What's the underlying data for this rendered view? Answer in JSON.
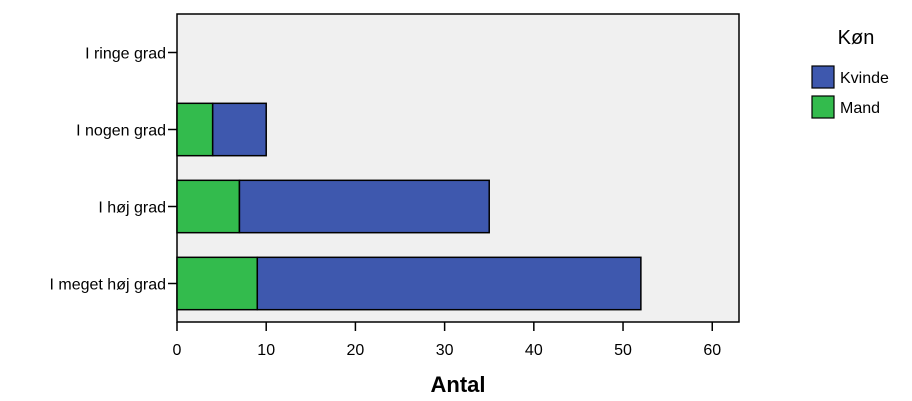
{
  "chart_data": {
    "type": "bar",
    "orientation": "horizontal",
    "stacked": true,
    "categories": [
      "I ringe grad",
      "I nogen grad",
      "I høj grad",
      "I meget høj grad"
    ],
    "series": [
      {
        "name": "Mand",
        "values": [
          0,
          4,
          7,
          9
        ],
        "color": "#33bb4d"
      },
      {
        "name": "Kvinde",
        "values": [
          0,
          6,
          28,
          43
        ],
        "color": "#3e58ae"
      }
    ],
    "xlabel": "Antal",
    "ylabel": "",
    "xlim": [
      0,
      63
    ],
    "xticks": [
      0,
      10,
      20,
      30,
      40,
      50,
      60
    ],
    "grid": false,
    "plot_background": "#f0f0f0",
    "legend": {
      "title": "Køn",
      "placement": "right",
      "order": [
        "Kvinde",
        "Mand"
      ]
    }
  }
}
